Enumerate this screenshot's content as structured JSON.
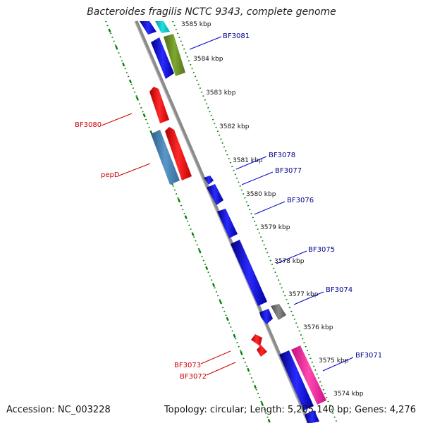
{
  "header": {
    "title": "Bacteroides fragilis NCTC 9343, complete genome"
  },
  "footer": {
    "accession": "Accession: NC_003228",
    "topology": "Topology: circular; Length: 5,205,140 bp; Genes: 4,276"
  },
  "colors": {
    "backbone": "#808080",
    "forward_blue": "#0000ff",
    "reverse_red": "#ff0000",
    "cyan": "#00c8c8",
    "olive": "#6b8e23",
    "steelblue": "#4682b4",
    "gray_gene": "#707070",
    "pink": "#ff1493",
    "ticks_green": "#008000",
    "label_blue": "#00008b",
    "label_red": "#cc0000"
  },
  "ticks": [
    {
      "label": "3585 kbp"
    },
    {
      "label": "3584 kbp"
    },
    {
      "label": "3583 kbp"
    },
    {
      "label": "3582 kbp"
    },
    {
      "label": "3581 kbp"
    },
    {
      "label": "3580 kbp"
    },
    {
      "label": "3579 kbp"
    },
    {
      "label": "3578 kbp"
    },
    {
      "label": "3577 kbp"
    },
    {
      "label": "3576 kbp"
    },
    {
      "label": "3575 kbp"
    },
    {
      "label": "3574 kbp"
    }
  ],
  "genes_forward": [
    {
      "label": "BF3081"
    },
    {
      "label": "BF3078"
    },
    {
      "label": "BF3077"
    },
    {
      "label": "BF3076"
    },
    {
      "label": "BF3075"
    },
    {
      "label": "BF3074"
    },
    {
      "label": "BF3071"
    }
  ],
  "genes_reverse": [
    {
      "label": "BF3080"
    },
    {
      "label": "pepD"
    },
    {
      "label": "BF3073"
    },
    {
      "label": "BF3072"
    }
  ]
}
